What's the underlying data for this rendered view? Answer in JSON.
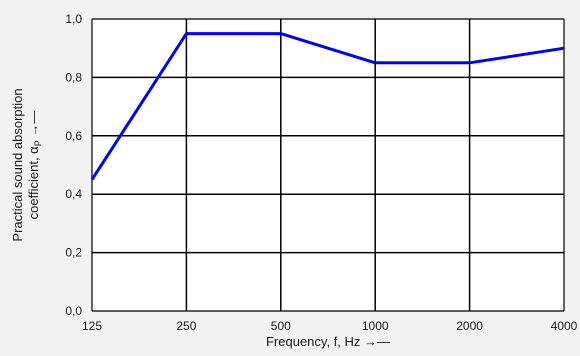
{
  "chart_data": {
    "type": "line",
    "title": "",
    "xlabel": "Frequency, f, Hz →—",
    "ylabel_line1": "Practical sound absorption",
    "ylabel_line2_prefix": "coefficient, α",
    "ylabel_line2_subscript": "P",
    "ylabel_line2_suffix": " →—",
    "x_scale": "categorical",
    "categories": [
      "125",
      "250",
      "500",
      "1000",
      "2000",
      "4000"
    ],
    "y_ticks": [
      "0,0",
      "0,2",
      "0,4",
      "0,6",
      "0,8",
      "1,0"
    ],
    "y_tick_values": [
      0.0,
      0.2,
      0.4,
      0.6,
      0.8,
      1.0
    ],
    "ylim": [
      0.0,
      1.0
    ],
    "grid": true,
    "series": [
      {
        "values": [
          0.45,
          0.95,
          0.95,
          0.85,
          0.85,
          0.9
        ],
        "color": "#0000ff"
      }
    ],
    "background_color": "#f2f2f2",
    "plot_background_color": "#ffffff",
    "grid_color": "#000000"
  }
}
